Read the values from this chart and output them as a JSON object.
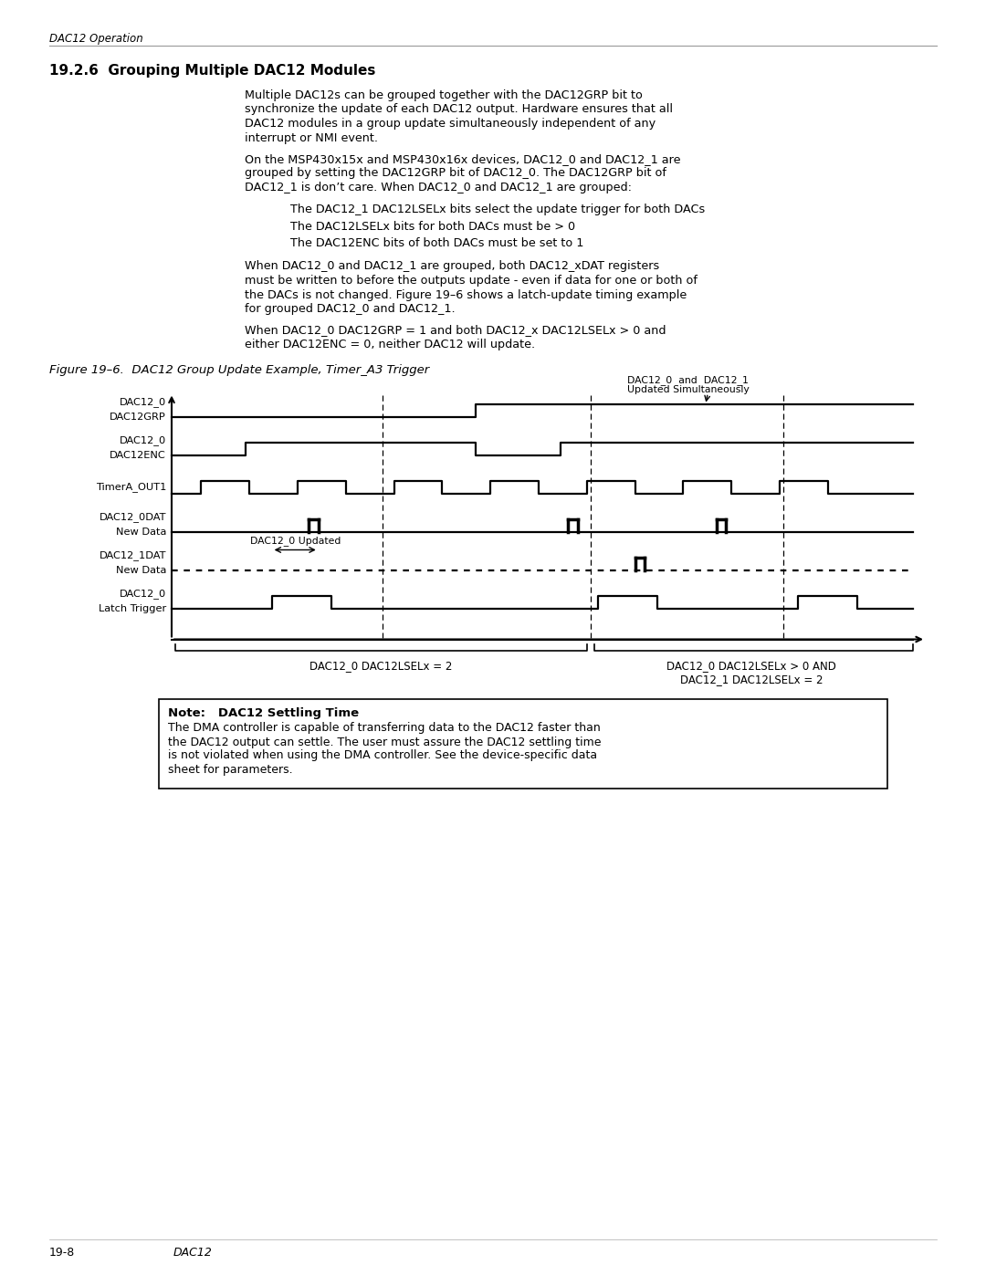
{
  "page_title_italic": "DAC12 Operation",
  "section_title": "19.2.6  Grouping Multiple DAC12 Modules",
  "p1_lines": [
    "Multiple DAC12s can be grouped together with the DAC12GRP bit to",
    "synchronize the update of each DAC12 output. Hardware ensures that all",
    "DAC12 modules in a group update simultaneously independent of any",
    "interrupt or NMI event."
  ],
  "p2_lines": [
    "On the MSP430x15x and MSP430x16x devices, DAC12_0 and DAC12_1 are",
    "grouped by setting the DAC12GRP bit of DAC12_0. The DAC12GRP bit of",
    "DAC12_1 is don’t care. When DAC12_0 and DAC12_1 are grouped:"
  ],
  "bullet1": "The DAC12_1 DAC12LSELx bits select the update trigger for both DACs",
  "bullet2": "The DAC12LSELx bits for both DACs must be > 0",
  "bullet3": "The DAC12ENC bits of both DACs must be set to 1",
  "p3_lines": [
    "When DAC12_0 and DAC12_1 are grouped, both DAC12_xDAT registers",
    "must be written to before the outputs update - even if data for one or both of",
    "the DACs is not changed. Figure 19–6 shows a latch-update timing example",
    "for grouped DAC12_0 and DAC12_1."
  ],
  "p4_lines": [
    "When DAC12_0 DAC12GRP = 1 and both DAC12_x DAC12LSELx > 0 and",
    "either DAC12ENC = 0, neither DAC12 will update."
  ],
  "figure_caption": "Figure 19–6.  DAC12 Group Update Example, Timer_A3 Trigger",
  "note_title": "Note:   DAC12 Settling Time",
  "note_lines": [
    "The DMA controller is capable of transferring data to the DAC12 faster than",
    "the DAC12 output can settle. The user must assure the DAC12 settling time",
    "is not violated when using the DMA controller. See the device-specific data",
    "sheet for parameters."
  ],
  "footer_left": "19-8",
  "footer_right": "DAC12",
  "bg_color": "#ffffff",
  "text_color": "#000000"
}
